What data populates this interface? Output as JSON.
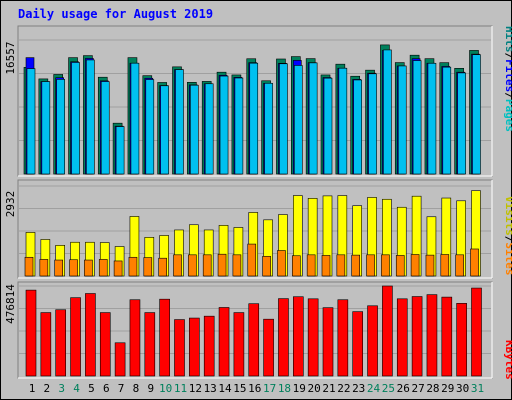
{
  "chart_data": {
    "type": "bar",
    "title": "Daily usage for August 2019",
    "categories": [
      "1",
      "2",
      "3",
      "4",
      "5",
      "6",
      "7",
      "8",
      "9",
      "10",
      "11",
      "12",
      "13",
      "14",
      "15",
      "16",
      "17",
      "18",
      "19",
      "20",
      "21",
      "22",
      "23",
      "24",
      "25",
      "26",
      "27",
      "28",
      "29",
      "30",
      "31"
    ],
    "weekend_days": [
      "3",
      "4",
      "10",
      "11",
      "17",
      "18",
      "24",
      "25",
      "31"
    ],
    "panels": [
      {
        "id": "hits",
        "ymax_label": "16557",
        "ymax": 16557,
        "legend": [
          {
            "name": "Hits",
            "color": "#008080"
          },
          {
            "name": "Files",
            "color": "#0000ff"
          },
          {
            "name": "Pages",
            "color": "#00c0c0"
          }
        ],
        "series": [
          {
            "name": "Hits",
            "color": "#00805c",
            "values": [
              13180,
              11750,
              12300,
              14380,
              14630,
              11960,
              6280,
              14380,
              12150,
              11310,
              13240,
              11330,
              11440,
              12580,
              12240,
              14240,
              11520,
              14210,
              14510,
              14260,
              12240,
              13570,
              12080,
              12830,
              15950,
              13770,
              14680,
              14250,
              13760,
              13060,
              15270
            ]
          },
          {
            "name": "Files",
            "color": "#0000ff",
            "values": [
              14380,
              11420,
              11900,
              13870,
              14280,
              11510,
              5910,
              13690,
              11830,
              10930,
              12900,
              11010,
              11150,
              12200,
              11940,
              13760,
              11210,
              13680,
              14040,
              13760,
              11920,
              13070,
              11690,
              12460,
              15270,
              13350,
              14250,
              13690,
              13290,
              12580,
              14810
            ]
          },
          {
            "name": "Pages",
            "color": "#00c0f0",
            "values": [
              13020,
              11420,
              11690,
              13780,
              14090,
              11420,
              5860,
              13690,
              11670,
              10900,
              12900,
              10970,
              11150,
              12100,
              11860,
              13690,
              11210,
              13620,
              13410,
              13730,
              11840,
              13070,
              11620,
              12380,
              15330,
              13350,
              14010,
              13680,
              13200,
              12490,
              14740
            ]
          }
        ]
      },
      {
        "id": "visits",
        "ymax_label": "2932",
        "ymax": 2932,
        "legend": [
          {
            "name": "Visits",
            "color": "#c0c000"
          },
          {
            "name": "Sites",
            "color": "#ff8000"
          }
        ],
        "series": [
          {
            "name": "Visits",
            "color": "#ffff00",
            "values": [
              1420,
              1190,
              1000,
              1100,
              1100,
              1090,
              960,
              1940,
              1260,
              1320,
              1500,
              1670,
              1500,
              1650,
              1580,
              2070,
              1830,
              2000,
              2620,
              2530,
              2610,
              2620,
              2290,
              2560,
              2500,
              2240,
              2600,
              1930,
              2540,
              2450,
              2780
            ]
          },
          {
            "name": "Sites",
            "color": "#ff8000",
            "values": [
              610,
              540,
              520,
              530,
              520,
              540,
              490,
              610,
              600,
              580,
              690,
              690,
              690,
              710,
              690,
              1040,
              640,
              830,
              660,
              690,
              670,
              690,
              680,
              690,
              690,
              670,
              700,
              680,
              700,
              690,
              880
            ]
          }
        ]
      },
      {
        "id": "kbytes",
        "ymax_label": "476814",
        "ymax": 476814,
        "legend": [
          {
            "name": "KBytes",
            "color": "#ff0000"
          }
        ],
        "series": [
          {
            "name": "KBytes",
            "color": "#ff0000",
            "values": [
              455000,
              336000,
              351000,
              415000,
              437000,
              336000,
              176000,
              404000,
              336000,
              407000,
              299000,
              307000,
              317000,
              363000,
              336000,
              383000,
              301000,
              410000,
              420000,
              409000,
              362000,
              404000,
              341000,
              372000,
              476814,
              409000,
              421000,
              431000,
              418000,
              385000,
              466000
            ]
          }
        ]
      }
    ]
  }
}
